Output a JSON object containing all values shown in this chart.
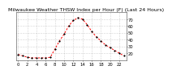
{
  "title": "Milwaukee Weather THSW Index per Hour (F) (Last 24 Hours)",
  "hours": [
    0,
    1,
    2,
    3,
    4,
    5,
    6,
    7,
    8,
    9,
    10,
    11,
    12,
    13,
    14,
    15,
    16,
    17,
    18,
    19,
    20,
    21,
    22,
    23
  ],
  "values": [
    18,
    16,
    14,
    13,
    13,
    13,
    13,
    14,
    26,
    38,
    48,
    60,
    68,
    72,
    70,
    62,
    52,
    44,
    38,
    32,
    28,
    24,
    20,
    16
  ],
  "ylim": [
    10,
    80
  ],
  "yticks": [
    20,
    30,
    40,
    50,
    60,
    70
  ],
  "xticks": [
    0,
    2,
    4,
    6,
    8,
    10,
    12,
    14,
    16,
    18,
    20,
    22
  ],
  "line_color": "#ff0000",
  "marker_color": "#000000",
  "bg_color": "#ffffff",
  "grid_color": "#888888",
  "title_fontsize": 4.5,
  "tick_fontsize": 3.8
}
